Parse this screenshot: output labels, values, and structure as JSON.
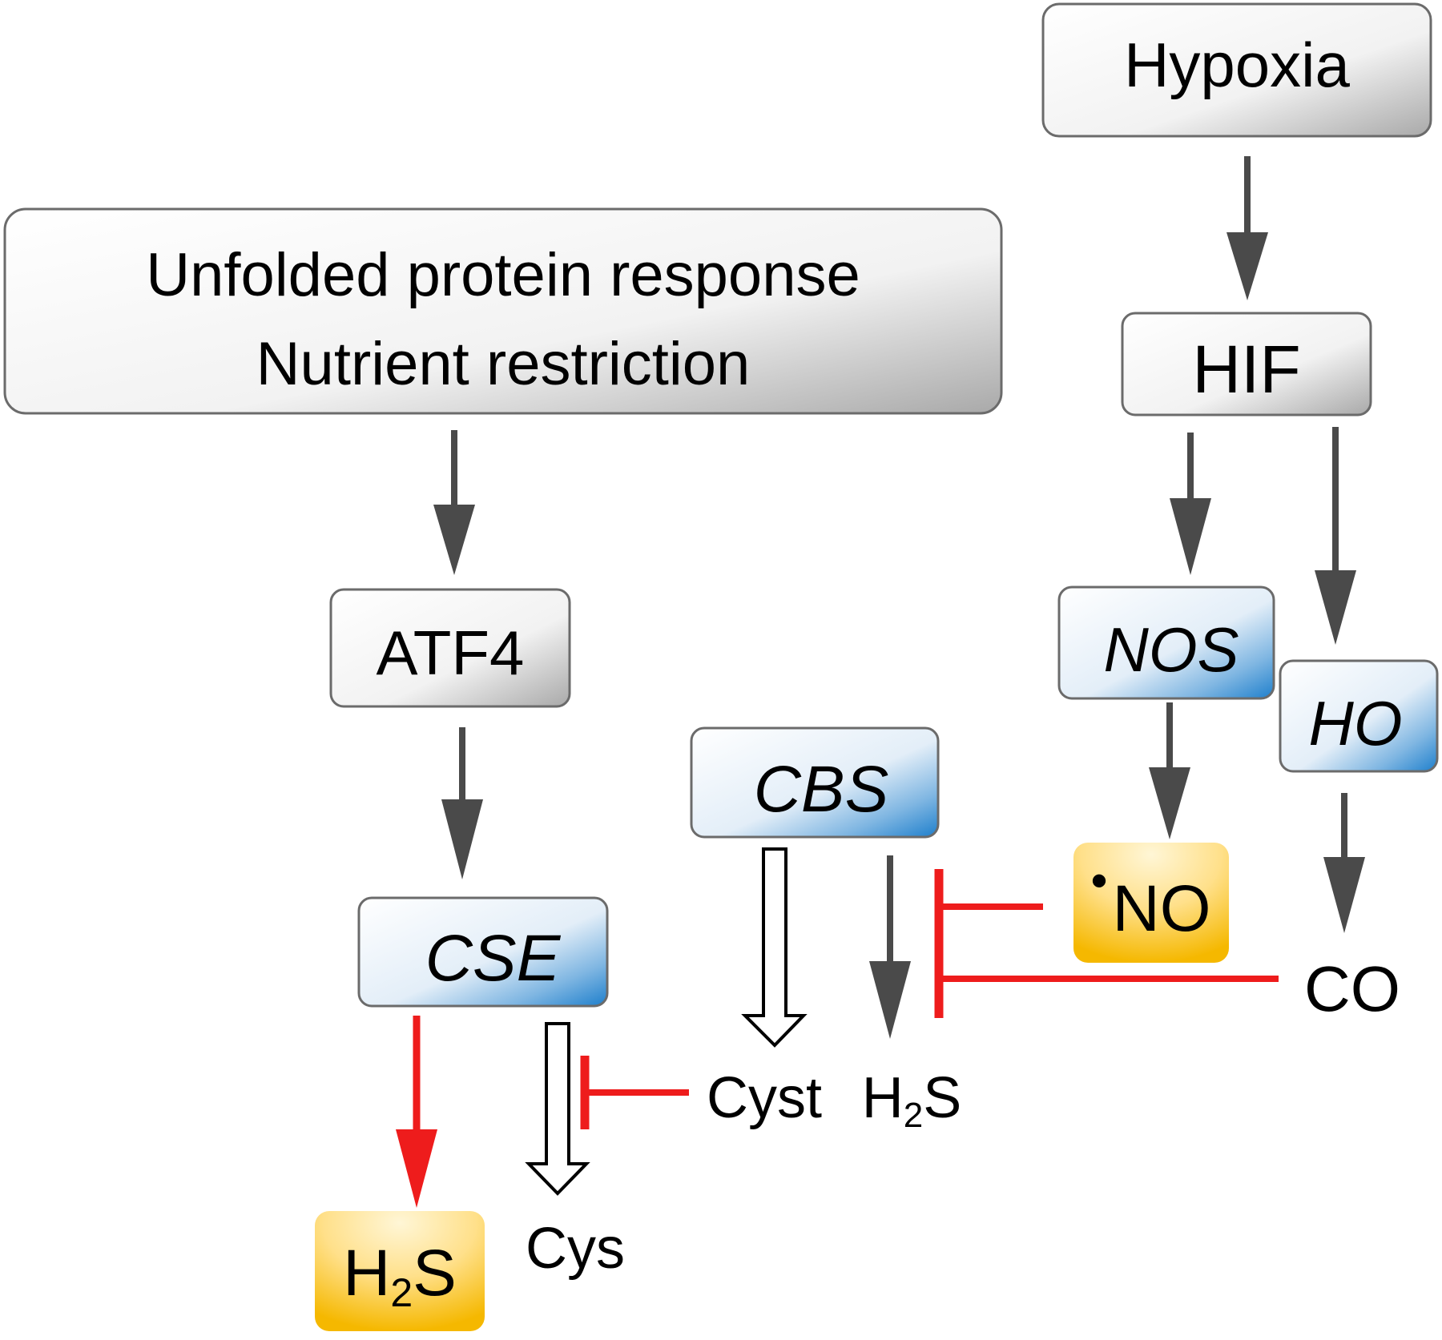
{
  "nodes": {
    "hypoxia": "Hypoxia",
    "upr_line1": "Unfolded protein response",
    "upr_line2": "Nutrient restriction",
    "hif": "HIF",
    "atf4": "ATF4",
    "nos": "NOS",
    "ho": "HO",
    "cbs": "CBS",
    "cse": "CSE",
    "no_dot": "•",
    "no": "NO",
    "co": "CO",
    "cyst": "Cyst",
    "cys": "Cys",
    "h2s_cbs": {
      "h": "H",
      "sub": "2",
      "s": "S"
    },
    "h2s_cse": {
      "h": "H",
      "sub": "2",
      "s": "S"
    }
  },
  "colors": {
    "activation_arrow": "#4a4a4a",
    "inhibition": "#ee1c1c",
    "cse_h2s_arrow": "#ee1c1c",
    "enzyme_gradient_end": "#1e7fcc",
    "product_fill_end": "#f5b800",
    "gray_box_end": "#a9a9a9"
  }
}
